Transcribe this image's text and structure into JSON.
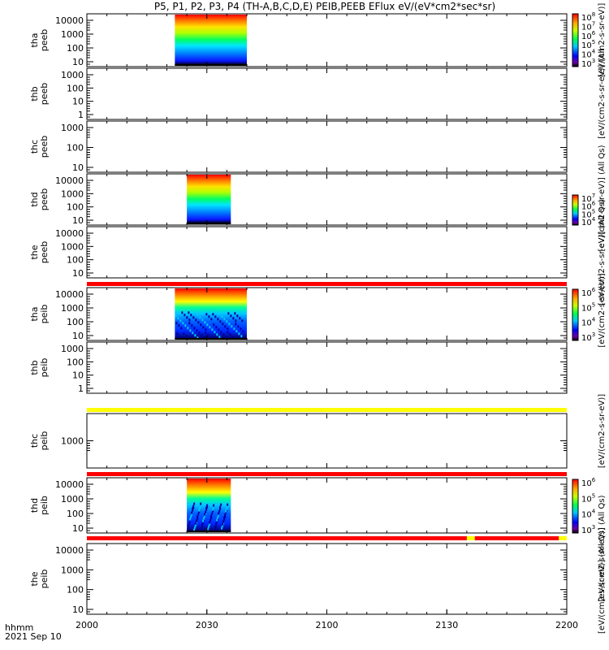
{
  "title": "P5, P1, P2, P3, P4 (TH-A,B,C,D,E) PEIB,PEEB EFlux eV/(eV*cm2*sec*sr)",
  "footer": {
    "time_label": "hhmm",
    "date_label": "2021 Sep 10"
  },
  "colors": {
    "red": "#ff0000",
    "yellow": "#ffff00",
    "black": "#000000"
  },
  "chart_data": {
    "type": "heatmap",
    "x_axis": {
      "range": [
        "20:00",
        "22:00"
      ],
      "ticks": [
        "2000",
        "2030",
        "2100",
        "2130",
        "2200"
      ]
    },
    "panels": [
      {
        "probe": "tha",
        "instrument": "peeb",
        "label1": "tha",
        "label2": "peeb",
        "yticks": [
          "10000",
          "1000",
          "100",
          "10"
        ],
        "data": "2022-2040",
        "colorbar": {
          "label": "[eV/(cm2-s-sr-eV)] (Al",
          "ticks": [
            "10^8",
            "10^7",
            "10^6",
            "10^5",
            "10^4",
            "10^3"
          ]
        }
      },
      {
        "probe": "thb",
        "instrument": "peeb",
        "label1": "thb",
        "label2": "peeb",
        "yticks": [
          "1000",
          "100",
          "10",
          "1"
        ],
        "data": "none",
        "colorbar": {
          "label": "[eV/(cm2-s-sr-eV)] (All",
          "ticks": []
        }
      },
      {
        "probe": "thc",
        "instrument": "peeb",
        "label1": "thc",
        "label2": "peeb",
        "yticks": [
          "1000",
          "100",
          "10"
        ],
        "data": "none",
        "colorbar": null
      },
      {
        "probe": "thd",
        "instrument": "peeb",
        "label1": "thd",
        "label2": "peeb",
        "yticks": [
          "10000",
          "1000",
          "100",
          "10"
        ],
        "data": "2025-2036",
        "colorbar": {
          "label": "[eV/(cm2-s-sr-eV)] (All Qs)",
          "ticks": [
            "10^7",
            "10^6",
            "10^5",
            "10^4"
          ]
        }
      },
      {
        "probe": "the",
        "instrument": "peeb",
        "label1": "the",
        "label2": "peeb",
        "yticks": [
          "10000",
          "1000",
          "100",
          "10"
        ],
        "data": "none",
        "colorbar": {
          "label": "[eV/(cm2-s-sr-eV)] (All Qs)",
          "ticks": []
        }
      },
      {
        "probe": "tha",
        "instrument": "peib",
        "label1": "tha",
        "label2": "peib",
        "yticks": [
          "10000",
          "1000",
          "100",
          "10"
        ],
        "data": "2022-2040",
        "colorbar": {
          "label": "[eV/(cm2-s-sr-eV)]",
          "ticks": [
            "10^6",
            "10^5",
            "10^4",
            "10^3"
          ]
        }
      },
      {
        "probe": "thb",
        "instrument": "peib",
        "label1": "thb",
        "label2": "peib",
        "yticks": [
          "1000",
          "100",
          "10",
          "1"
        ],
        "data": "none",
        "colorbar": {
          "label": "[eV/(cm2-s-sr-eV)]",
          "ticks": []
        }
      },
      {
        "probe": "thc",
        "instrument": "peib",
        "label1": "thc",
        "label2": "peib",
        "yticks": [
          "1000"
        ],
        "data": "none",
        "colorbar": null
      },
      {
        "probe": "thd",
        "instrument": "peib",
        "label1": "thd",
        "label2": "peib",
        "yticks": [
          "10000",
          "1000",
          "100",
          "10"
        ],
        "data": "2025-2036",
        "colorbar": {
          "label": "[eV/(cm2-s-sr-eV)] (All Qs)",
          "ticks": [
            "10^6",
            "10^5",
            "10^4",
            "10^3"
          ]
        }
      },
      {
        "probe": "the",
        "instrument": "peib",
        "label1": "the",
        "label2": "peib",
        "yticks": [
          "10000",
          "1000",
          "100",
          "10"
        ],
        "data": "none",
        "colorbar": {
          "label": "[eV/(cm2-s-sr-eV)] (All Qs)",
          "ticks": []
        }
      }
    ],
    "flag_bars": [
      {
        "after_panel": 4,
        "color": "red"
      },
      {
        "after_panel": 6,
        "color": "yellow"
      },
      {
        "after_panel": 7,
        "color": "red"
      },
      {
        "after_panel": 8,
        "color": "red-with-yellow-segments",
        "yellow_ranges": [
          [
            "21:35",
            "21:37"
          ],
          [
            "21:58",
            "22:00"
          ]
        ]
      }
    ]
  }
}
